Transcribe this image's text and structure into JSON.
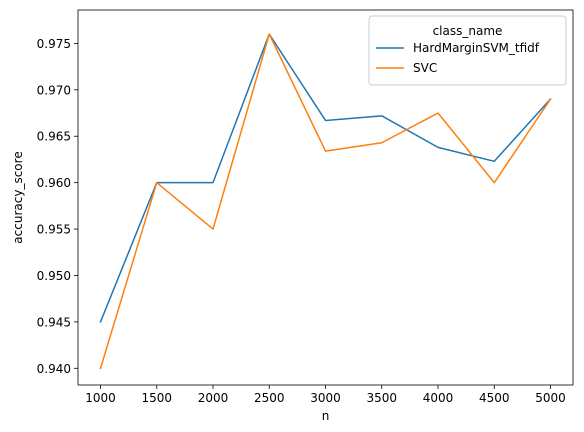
{
  "chart_data": {
    "type": "line",
    "xlabel": "n",
    "ylabel": "accuracy_score",
    "x": [
      1000,
      1500,
      2000,
      2500,
      3000,
      3500,
      4000,
      4500,
      5000
    ],
    "xticks": [
      "1000",
      "1500",
      "2000",
      "2500",
      "3000",
      "3500",
      "4000",
      "4500",
      "5000"
    ],
    "xlim": [
      800,
      5200
    ],
    "yticks": [
      "0.940",
      "0.945",
      "0.950",
      "0.955",
      "0.960",
      "0.965",
      "0.970",
      "0.975"
    ],
    "ylim": [
      0.9382,
      0.9786
    ],
    "grid": false,
    "legend": {
      "title": "class_name",
      "placement": "top-right"
    },
    "series": [
      {
        "name": "HardMarginSVM_tfidf",
        "color": "#1f77b4",
        "values": [
          0.945,
          0.96,
          0.96,
          0.976,
          0.9667,
          0.9672,
          0.9638,
          0.9623,
          0.969
        ]
      },
      {
        "name": "SVC",
        "color": "#ff7f0e",
        "values": [
          0.94,
          0.96,
          0.955,
          0.976,
          0.9634,
          0.9643,
          0.9675,
          0.96,
          0.969
        ]
      }
    ]
  }
}
